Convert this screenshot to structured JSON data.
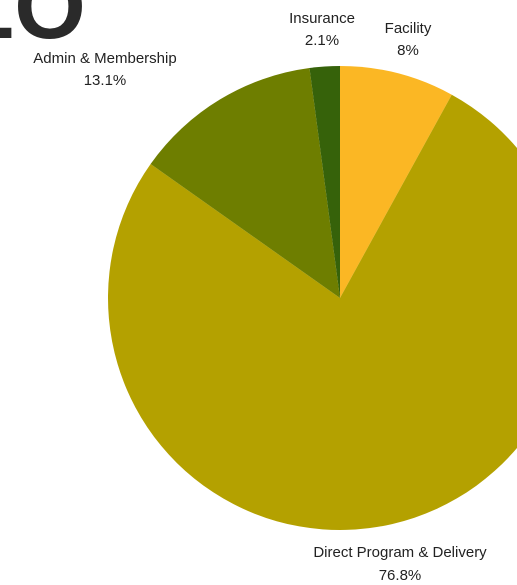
{
  "chart_data": {
    "type": "pie",
    "title": "",
    "title_fragment": "LO",
    "start_angle_deg": 0,
    "direction": "clockwise",
    "slices": [
      {
        "label": "Facility",
        "value": 8,
        "value_label": "8%",
        "color": "#FBB724"
      },
      {
        "label": "Direct Program & Delivery",
        "value": 76.8,
        "value_label": "76.8%",
        "color": "#B4A100"
      },
      {
        "label": "Admin & Membership",
        "value": 13.1,
        "value_label": "13.1%",
        "color": "#6E7E00"
      },
      {
        "label": "Insurance",
        "value": 2.1,
        "value_label": "2.1%",
        "color": "#36620A"
      }
    ]
  }
}
